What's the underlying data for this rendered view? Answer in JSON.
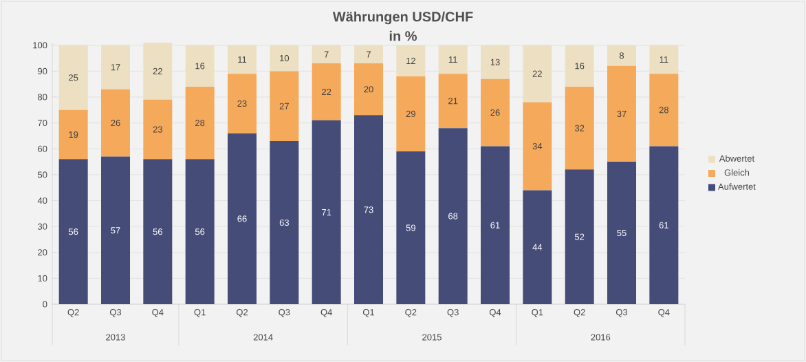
{
  "chart_data": {
    "type": "bar",
    "stacked": true,
    "title": "Währungen USD/CHF",
    "subtitle": "in %",
    "categories": [
      "Q2",
      "Q3",
      "Q4",
      "Q1",
      "Q2",
      "Q3",
      "Q4",
      "Q1",
      "Q2",
      "Q3",
      "Q4",
      "Q1",
      "Q2",
      "Q3",
      "Q4"
    ],
    "annotations": [
      "2013",
      "2014",
      "2015",
      "2016"
    ],
    "series": [
      {
        "name": "Aufwertet",
        "color": "#454c78",
        "values": [
          56,
          57,
          56,
          56,
          66,
          63,
          71,
          73,
          59,
          68,
          61,
          44,
          52,
          55,
          61
        ]
      },
      {
        "name": "Gleich",
        "color": "#f5a95b",
        "values": [
          19,
          26,
          23,
          28,
          23,
          27,
          22,
          20,
          29,
          21,
          26,
          34,
          32,
          37,
          28
        ]
      },
      {
        "name": "Abwertet",
        "color": "#ede0c2",
        "values": [
          25,
          17,
          22,
          16,
          11,
          10,
          7,
          7,
          12,
          11,
          13,
          22,
          16,
          8,
          11
        ]
      }
    ],
    "ylim": [
      0,
      101
    ],
    "yticks": [
      0,
      10,
      20,
      30,
      40,
      50,
      60,
      70,
      80,
      90,
      100
    ],
    "grid": "y",
    "legend": "right",
    "data_labels": true
  }
}
